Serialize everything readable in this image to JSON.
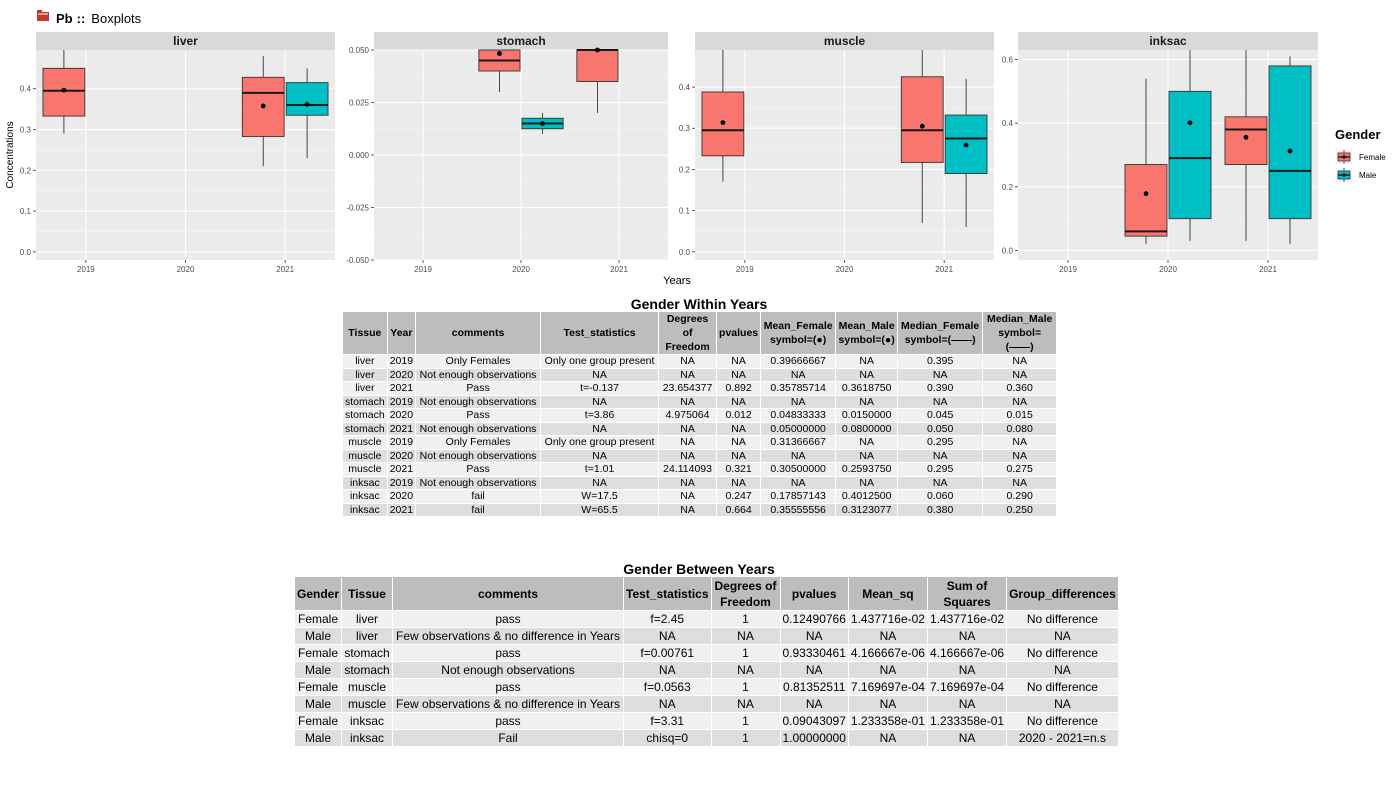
{
  "header": {
    "element": "Pb",
    "separator": "::",
    "title": "Boxplots",
    "icon": "red-folder-icon"
  },
  "chart_data": {
    "type": "boxplot",
    "xlabel": "Years",
    "ylabel": "Concentrations",
    "x_ticks": [
      "2019",
      "2020",
      "2021"
    ],
    "legend": {
      "title": "Gender",
      "placement": "right",
      "entries": [
        {
          "name": "Female",
          "color": "#F8766D"
        },
        {
          "name": "Male",
          "color": "#00BFC4"
        }
      ]
    },
    "panels": [
      {
        "title": "liver",
        "ylim": [
          -0.02,
          0.495
        ],
        "yticks": [
          0.0,
          0.1,
          0.2,
          0.3,
          0.4
        ],
        "ytick_labels": [
          "0.0",
          "0.1",
          "0.2",
          "0.3",
          "0.4"
        ],
        "boxes": [
          {
            "year": "2019",
            "gender": "Female",
            "wlow": 0.29,
            "q1": 0.333,
            "median": 0.395,
            "q3": 0.45,
            "whigh": 0.495,
            "mean": 0.39666667
          },
          {
            "year": "2021",
            "gender": "Female",
            "wlow": 0.21,
            "q1": 0.283,
            "median": 0.39,
            "q3": 0.428,
            "whigh": 0.48,
            "mean": 0.35785714
          },
          {
            "year": "2021",
            "gender": "Male",
            "wlow": 0.23,
            "q1": 0.335,
            "median": 0.36,
            "q3": 0.415,
            "whigh": 0.45,
            "mean": 0.361875
          }
        ]
      },
      {
        "title": "stomach",
        "ylim": [
          -0.05,
          0.05
        ],
        "yticks": [
          -0.05,
          -0.025,
          0.0,
          0.025,
          0.05
        ],
        "ytick_labels": [
          "-0.050",
          "-0.025",
          "0.000",
          "0.025",
          "0.050"
        ],
        "boxes": [
          {
            "year": "2020",
            "gender": "Female",
            "wlow": 0.03,
            "q1": 0.04,
            "median": 0.045,
            "q3": 0.05,
            "whigh": 0.05,
            "mean": 0.04833333
          },
          {
            "year": "2020",
            "gender": "Male",
            "wlow": 0.01,
            "q1": 0.0125,
            "median": 0.015,
            "q3": 0.0175,
            "whigh": 0.02,
            "mean": 0.015
          },
          {
            "year": "2021",
            "gender": "Female",
            "wlow": 0.02,
            "q1": 0.035,
            "median": 0.05,
            "q3": 0.05,
            "whigh": 0.05,
            "mean": 0.05
          }
        ]
      },
      {
        "title": "muscle",
        "ylim": [
          -0.02,
          0.49
        ],
        "yticks": [
          0.0,
          0.1,
          0.2,
          0.3,
          0.4
        ],
        "ytick_labels": [
          "0.0",
          "0.1",
          "0.2",
          "0.3",
          "0.4"
        ],
        "boxes": [
          {
            "year": "2019",
            "gender": "Female",
            "wlow": 0.17,
            "q1": 0.233,
            "median": 0.295,
            "q3": 0.388,
            "whigh": 0.49,
            "mean": 0.31366667
          },
          {
            "year": "2021",
            "gender": "Female",
            "wlow": 0.07,
            "q1": 0.217,
            "median": 0.295,
            "q3": 0.425,
            "whigh": 0.49,
            "mean": 0.305
          },
          {
            "year": "2021",
            "gender": "Male",
            "wlow": 0.06,
            "q1": 0.19,
            "median": 0.275,
            "q3": 0.332,
            "whigh": 0.42,
            "mean": 0.259375
          }
        ]
      },
      {
        "title": "inksac",
        "ylim": [
          -0.03,
          0.63
        ],
        "yticks": [
          0.0,
          0.2,
          0.4,
          0.6
        ],
        "ytick_labels": [
          "0.0",
          "0.2",
          "0.4",
          "0.6"
        ],
        "boxes": [
          {
            "year": "2020",
            "gender": "Female",
            "wlow": 0.02,
            "q1": 0.045,
            "median": 0.06,
            "q3": 0.27,
            "whigh": 0.54,
            "mean": 0.17857143
          },
          {
            "year": "2020",
            "gender": "Male",
            "wlow": 0.03,
            "q1": 0.1,
            "median": 0.29,
            "q3": 0.5,
            "whigh": 0.63,
            "mean": 0.40125
          },
          {
            "year": "2021",
            "gender": "Female",
            "wlow": 0.03,
            "q1": 0.27,
            "median": 0.38,
            "q3": 0.42,
            "whigh": 0.63,
            "mean": 0.35555556
          },
          {
            "year": "2021",
            "gender": "Male",
            "wlow": 0.02,
            "q1": 0.1,
            "median": 0.25,
            "q3": 0.58,
            "whigh": 0.61,
            "mean": 0.3123077
          }
        ]
      }
    ]
  },
  "table_within": {
    "title": "Gender Within Years",
    "headers": [
      "Tissue",
      "Year",
      "comments",
      "Test_statistics",
      "Degrees of\nFreedom",
      "pvalues",
      "Mean_Female\nsymbol=(●)",
      "Mean_Male\nsymbol=(●)",
      "Median_Female\nsymbol=(——)",
      "Median_Male\nsymbol=(——)"
    ],
    "rows": [
      [
        "liver",
        "2019",
        "Only Females",
        "Only one group present",
        "NA",
        "NA",
        "0.39666667",
        "NA",
        "0.395",
        "NA"
      ],
      [
        "liver",
        "2020",
        "Not enough observations",
        "NA",
        "NA",
        "NA",
        "NA",
        "NA",
        "NA",
        "NA"
      ],
      [
        "liver",
        "2021",
        "Pass",
        "t=-0.137",
        "23.654377",
        "0.892",
        "0.35785714",
        "0.3618750",
        "0.390",
        "0.360"
      ],
      [
        "stomach",
        "2019",
        "Not enough observations",
        "NA",
        "NA",
        "NA",
        "NA",
        "NA",
        "NA",
        "NA"
      ],
      [
        "stomach",
        "2020",
        "Pass",
        "t=3.86",
        "4.975064",
        "0.012",
        "0.04833333",
        "0.0150000",
        "0.045",
        "0.015"
      ],
      [
        "stomach",
        "2021",
        "Not enough observations",
        "NA",
        "NA",
        "NA",
        "0.05000000",
        "0.0800000",
        "0.050",
        "0.080"
      ],
      [
        "muscle",
        "2019",
        "Only Females",
        "Only one group present",
        "NA",
        "NA",
        "0.31366667",
        "NA",
        "0.295",
        "NA"
      ],
      [
        "muscle",
        "2020",
        "Not enough observations",
        "NA",
        "NA",
        "NA",
        "NA",
        "NA",
        "NA",
        "NA"
      ],
      [
        "muscle",
        "2021",
        "Pass",
        "t=1.01",
        "24.114093",
        "0.321",
        "0.30500000",
        "0.2593750",
        "0.295",
        "0.275"
      ],
      [
        "inksac",
        "2019",
        "Not enough observations",
        "NA",
        "NA",
        "NA",
        "NA",
        "NA",
        "NA",
        "NA"
      ],
      [
        "inksac",
        "2020",
        "fail",
        "W=17.5",
        "NA",
        "0.247",
        "0.17857143",
        "0.4012500",
        "0.060",
        "0.290"
      ],
      [
        "inksac",
        "2021",
        "fail",
        "W=65.5",
        "NA",
        "0.664",
        "0.35555556",
        "0.3123077",
        "0.380",
        "0.250"
      ]
    ]
  },
  "table_between": {
    "title": "Gender Between Years",
    "headers": [
      "Gender",
      "Tissue",
      "comments",
      "Test_statistics",
      "Degrees of\nFreedom",
      "pvalues",
      "Mean_sq",
      "Sum of\nSquares",
      "Group_differences"
    ],
    "rows": [
      [
        "Female",
        "liver",
        "pass",
        "f=2.45",
        "1",
        "0.12490766",
        "1.437716e-02",
        "1.437716e-02",
        "No difference"
      ],
      [
        "Male",
        "liver",
        "Few observations & no difference in Years",
        "NA",
        "NA",
        "NA",
        "NA",
        "NA",
        "NA"
      ],
      [
        "Female",
        "stomach",
        "pass",
        "f=0.00761",
        "1",
        "0.93330461",
        "4.166667e-06",
        "4.166667e-06",
        "No difference"
      ],
      [
        "Male",
        "stomach",
        "Not enough observations",
        "NA",
        "NA",
        "NA",
        "NA",
        "NA",
        "NA"
      ],
      [
        "Female",
        "muscle",
        "pass",
        "f=0.0563",
        "1",
        "0.81352511",
        "7.169697e-04",
        "7.169697e-04",
        "No difference"
      ],
      [
        "Male",
        "muscle",
        "Few observations & no difference in Years",
        "NA",
        "NA",
        "NA",
        "NA",
        "NA",
        "NA"
      ],
      [
        "Female",
        "inksac",
        "pass",
        "f=3.31",
        "1",
        "0.09043097",
        "1.233358e-01",
        "1.233358e-01",
        "No difference"
      ],
      [
        "Male",
        "inksac",
        "Fail",
        "chisq=0",
        "1",
        "1.00000000",
        "NA",
        "NA",
        "2020 - 2021=n.s"
      ]
    ]
  }
}
